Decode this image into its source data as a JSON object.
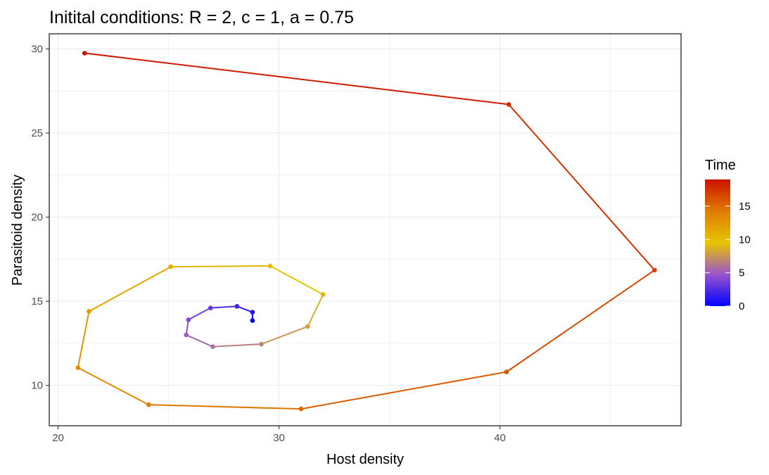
{
  "chart_data": {
    "type": "scatter",
    "title": "Initital conditions: R = 2, c = 1, a = 0.75",
    "xlabel": "Host density",
    "ylabel": "Parasitoid density",
    "xlim": [
      19.6,
      48.2
    ],
    "ylim": [
      7.6,
      30.9
    ],
    "xticks": [
      20,
      30,
      40
    ],
    "yticks": [
      10,
      15,
      20,
      25,
      30
    ],
    "grid": true,
    "legend": {
      "title": "Time",
      "position": "right",
      "range": [
        0,
        19
      ],
      "ticks": [
        0,
        5,
        10,
        15
      ],
      "colors": [
        "#0000ff",
        "#9955cc",
        "#e8c400",
        "#e07b00",
        "#cc1100"
      ]
    },
    "points": [
      {
        "time": 0,
        "host": 28.8,
        "parasitoid": 13.85
      },
      {
        "time": 1,
        "host": 28.8,
        "parasitoid": 14.35
      },
      {
        "time": 2,
        "host": 28.1,
        "parasitoid": 14.7
      },
      {
        "time": 3,
        "host": 26.9,
        "parasitoid": 14.6
      },
      {
        "time": 4,
        "host": 25.9,
        "parasitoid": 13.9
      },
      {
        "time": 5,
        "host": 25.8,
        "parasitoid": 13.0
      },
      {
        "time": 6,
        "host": 27.0,
        "parasitoid": 12.3
      },
      {
        "time": 7,
        "host": 29.2,
        "parasitoid": 12.45
      },
      {
        "time": 8,
        "host": 31.3,
        "parasitoid": 13.5
      },
      {
        "time": 9,
        "host": 32.0,
        "parasitoid": 15.4
      },
      {
        "time": 10,
        "host": 29.6,
        "parasitoid": 17.1
      },
      {
        "time": 11,
        "host": 25.1,
        "parasitoid": 17.05
      },
      {
        "time": 12,
        "host": 21.4,
        "parasitoid": 14.4
      },
      {
        "time": 13,
        "host": 20.9,
        "parasitoid": 11.05
      },
      {
        "time": 14,
        "host": 24.1,
        "parasitoid": 8.85
      },
      {
        "time": 15,
        "host": 31.0,
        "parasitoid": 8.6
      },
      {
        "time": 16,
        "host": 40.3,
        "parasitoid": 10.8
      },
      {
        "time": 17,
        "host": 47.0,
        "parasitoid": 16.85
      },
      {
        "time": 18,
        "host": 40.4,
        "parasitoid": 26.7
      },
      {
        "time": 19,
        "host": 21.2,
        "parasitoid": 29.75
      }
    ]
  }
}
